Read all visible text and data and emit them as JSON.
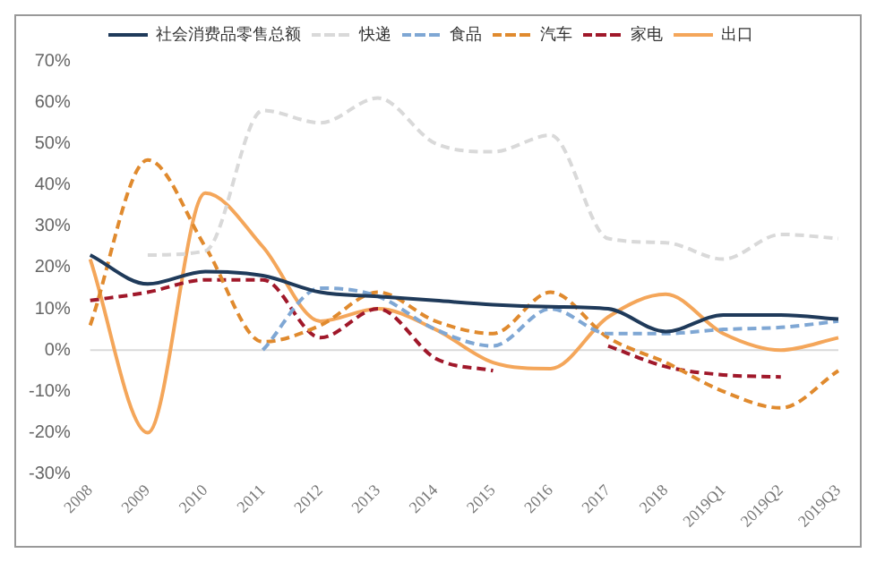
{
  "chart_data": {
    "type": "line",
    "categories": [
      "2008",
      "2009",
      "2010",
      "2011",
      "2012",
      "2013",
      "2014",
      "2015",
      "2016",
      "2017",
      "2018",
      "2019Q1",
      "2019Q2",
      "2019Q3"
    ],
    "series": [
      {
        "name": "社会消费品零售总额",
        "color": "#1f3a5a",
        "line_style": "solid",
        "values": [
          23,
          16,
          19,
          18,
          14,
          13,
          12,
          11,
          10.5,
          10,
          4.5,
          8.5,
          8.5,
          7.5
        ]
      },
      {
        "name": "快递",
        "color": "#d9d9d9",
        "line_style": "dashed",
        "values": [
          null,
          23,
          24,
          58,
          55,
          61,
          50,
          48,
          52,
          27,
          26,
          22,
          28,
          27
        ]
      },
      {
        "name": "食品",
        "color": "#7fa7d4",
        "line_style": "dashed",
        "values": [
          null,
          null,
          null,
          0,
          15,
          13,
          5,
          1,
          10,
          4,
          4,
          5,
          5.5,
          7
        ]
      },
      {
        "name": "汽车",
        "color": "#e08a2e",
        "line_style": "dashed",
        "values": [
          6,
          46,
          25,
          2,
          6,
          14,
          7,
          4,
          14,
          3,
          -3,
          -10,
          -14,
          -5
        ]
      },
      {
        "name": "家电",
        "color": "#a0182a",
        "line_style": "dashed",
        "values": [
          12,
          14,
          17,
          17,
          3,
          10,
          -2,
          -5,
          null,
          1,
          -4,
          -6,
          -6.5,
          null
        ]
      },
      {
        "name": "出口",
        "color": "#f4a65a",
        "line_style": "solid",
        "values": [
          22,
          -20,
          38,
          25,
          7,
          10,
          5,
          -3,
          -4.5,
          8,
          13.5,
          4,
          0,
          3
        ]
      }
    ],
    "ylim": [
      -30,
      70
    ],
    "yticks": [
      {
        "value": -30,
        "label": "-30%"
      },
      {
        "value": -20,
        "label": "-20%"
      },
      {
        "value": -10,
        "label": "-10%"
      },
      {
        "value": 0,
        "label": "0%"
      },
      {
        "value": 10,
        "label": "10%"
      },
      {
        "value": 20,
        "label": "20%"
      },
      {
        "value": 30,
        "label": "30%"
      },
      {
        "value": 40,
        "label": "40%"
      },
      {
        "value": 50,
        "label": "50%"
      },
      {
        "value": 60,
        "label": "60%"
      },
      {
        "value": 70,
        "label": "70%"
      }
    ],
    "ref_lines": [
      {
        "axis": "y",
        "value": 0,
        "color": "#d9d9d9"
      }
    ],
    "grid": false,
    "legend": "top",
    "marker": "none"
  }
}
